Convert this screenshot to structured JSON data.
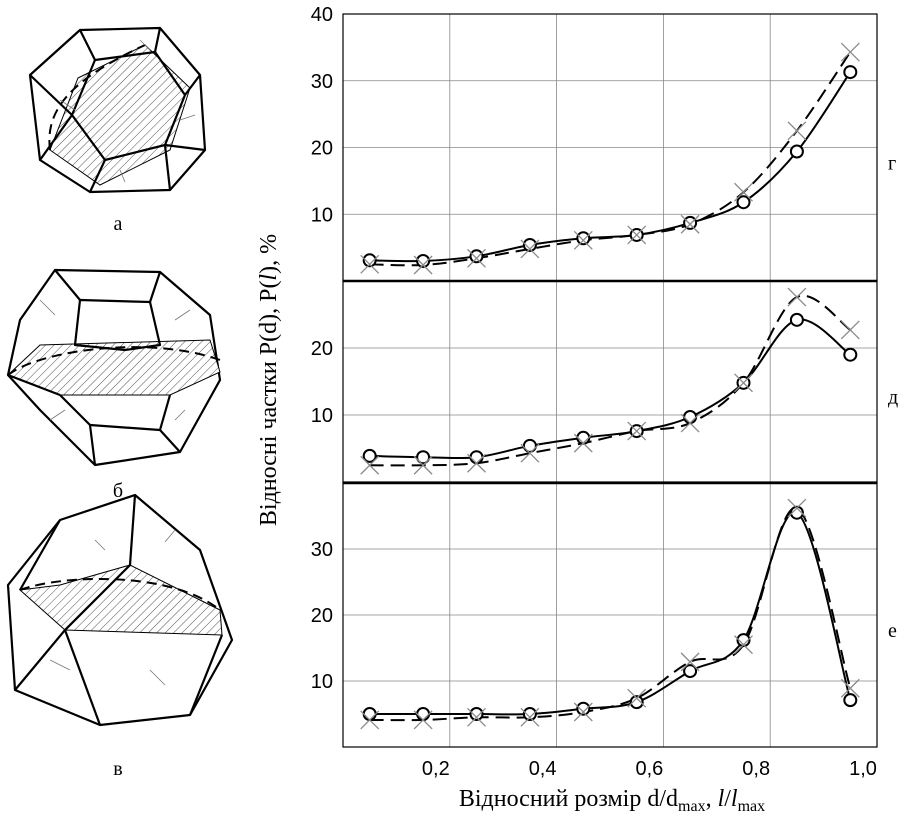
{
  "ylabel": [
    "Відносні частки P(d), P(",
    "l",
    "), %"
  ],
  "xlabel": [
    "Відносний розмір d/d",
    "max",
    ", ",
    "l",
    "/",
    "l",
    "max"
  ],
  "drawing_labels": [
    "а",
    "б",
    "в"
  ],
  "chart_data": [
    {
      "type": "line",
      "panel_label": "г",
      "x": [
        0.05,
        0.15,
        0.25,
        0.35,
        0.45,
        0.55,
        0.65,
        0.75,
        0.85,
        0.95
      ],
      "xlim": [
        0,
        1
      ],
      "xticks": [
        0.2,
        0.4,
        0.6,
        0.8,
        1.0
      ],
      "ylim": [
        0,
        40
      ],
      "yticks": [
        10,
        20,
        30,
        40
      ],
      "grid": true,
      "series": [
        {
          "marker": "circle",
          "dashed": false,
          "color": "#000000",
          "values": [
            3.1,
            3.0,
            3.7,
            5.4,
            6.4,
            6.9,
            8.7,
            11.8,
            19.4,
            31.3
          ]
        },
        {
          "marker": "x",
          "dashed": true,
          "color": "#000000",
          "values": [
            2.5,
            2.4,
            3.4,
            4.8,
            6.1,
            6.9,
            8.5,
            13.3,
            22.5,
            34.3
          ]
        }
      ]
    },
    {
      "type": "line",
      "panel_label": "д",
      "x": [
        0.05,
        0.15,
        0.25,
        0.35,
        0.45,
        0.55,
        0.65,
        0.75,
        0.85,
        0.95
      ],
      "xlim": [
        0,
        1
      ],
      "xticks": [
        0.2,
        0.4,
        0.6,
        0.8,
        1.0
      ],
      "ylim": [
        0,
        30
      ],
      "yticks": [
        10,
        20
      ],
      "grid": true,
      "series": [
        {
          "marker": "circle",
          "dashed": false,
          "color": "#000000",
          "values": [
            3.9,
            3.7,
            3.7,
            5.4,
            6.6,
            7.6,
            9.7,
            14.8,
            24.2,
            19.0
          ]
        },
        {
          "marker": "x",
          "dashed": true,
          "color": "#000000",
          "values": [
            2.5,
            2.5,
            2.8,
            4.3,
            5.8,
            7.6,
            8.8,
            14.8,
            27.6,
            22.7
          ]
        }
      ]
    },
    {
      "type": "line",
      "panel_label": "е",
      "x": [
        0.05,
        0.15,
        0.25,
        0.35,
        0.45,
        0.55,
        0.65,
        0.75,
        0.85,
        0.95
      ],
      "xlim": [
        0,
        1
      ],
      "xticks": [
        {
          "value": 0.2,
          "label": "0,2"
        },
        {
          "value": 0.4,
          "label": "0,4"
        },
        {
          "value": 0.6,
          "label": "0,6"
        },
        {
          "value": 0.8,
          "label": "0,8"
        },
        {
          "value": 1.0,
          "label": "1,0"
        }
      ],
      "ylim": [
        0,
        40
      ],
      "yticks": [
        10,
        20,
        30
      ],
      "grid": true,
      "series": [
        {
          "marker": "circle",
          "dashed": false,
          "color": "#000000",
          "values": [
            5.0,
            5.0,
            5.0,
            5.0,
            5.8,
            6.8,
            11.5,
            16.2,
            35.5,
            7.1
          ]
        },
        {
          "marker": "x",
          "dashed": true,
          "color": "#000000",
          "values": [
            4.1,
            4.1,
            4.5,
            4.5,
            5.3,
            7.4,
            12.9,
            15.5,
            36.2,
            8.9
          ]
        }
      ]
    }
  ]
}
